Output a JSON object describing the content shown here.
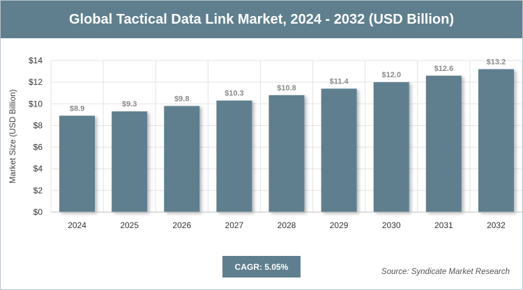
{
  "title": "Global Tactical Data Link Market, 2024 - 2032 (USD Billion)",
  "cagr_label": "CAGR: 5.05%",
  "source": "Source: Syndicate Market Research",
  "colors": {
    "bar": "#5f7f8e",
    "header": "#5f7f8e",
    "grid": "#e3e3e3",
    "label": "#8a8a8a"
  },
  "chart_data": {
    "type": "bar",
    "title": "Global Tactical Data Link Market, 2024 - 2032 (USD Billion)",
    "xlabel": "",
    "ylabel": "Market Size (USD Billion)",
    "categories": [
      "2024",
      "2025",
      "2026",
      "2027",
      "2028",
      "2029",
      "2030",
      "2031",
      "2032"
    ],
    "values": [
      8.9,
      9.3,
      9.8,
      10.3,
      10.8,
      11.4,
      12.0,
      12.6,
      13.2
    ],
    "value_labels": [
      "$8.9",
      "$9.3",
      "$9.8",
      "$10.3",
      "$10.8",
      "$11.4",
      "$12.0",
      "$12.6",
      "$13.2"
    ],
    "ylim": [
      0,
      14
    ],
    "yticks": [
      0,
      2,
      4,
      6,
      8,
      10,
      12,
      14
    ],
    "ytick_labels": [
      "$0",
      "$2",
      "$4",
      "$6",
      "$8",
      "$10",
      "$12",
      "$14"
    ],
    "grid": true,
    "legend": "none"
  }
}
